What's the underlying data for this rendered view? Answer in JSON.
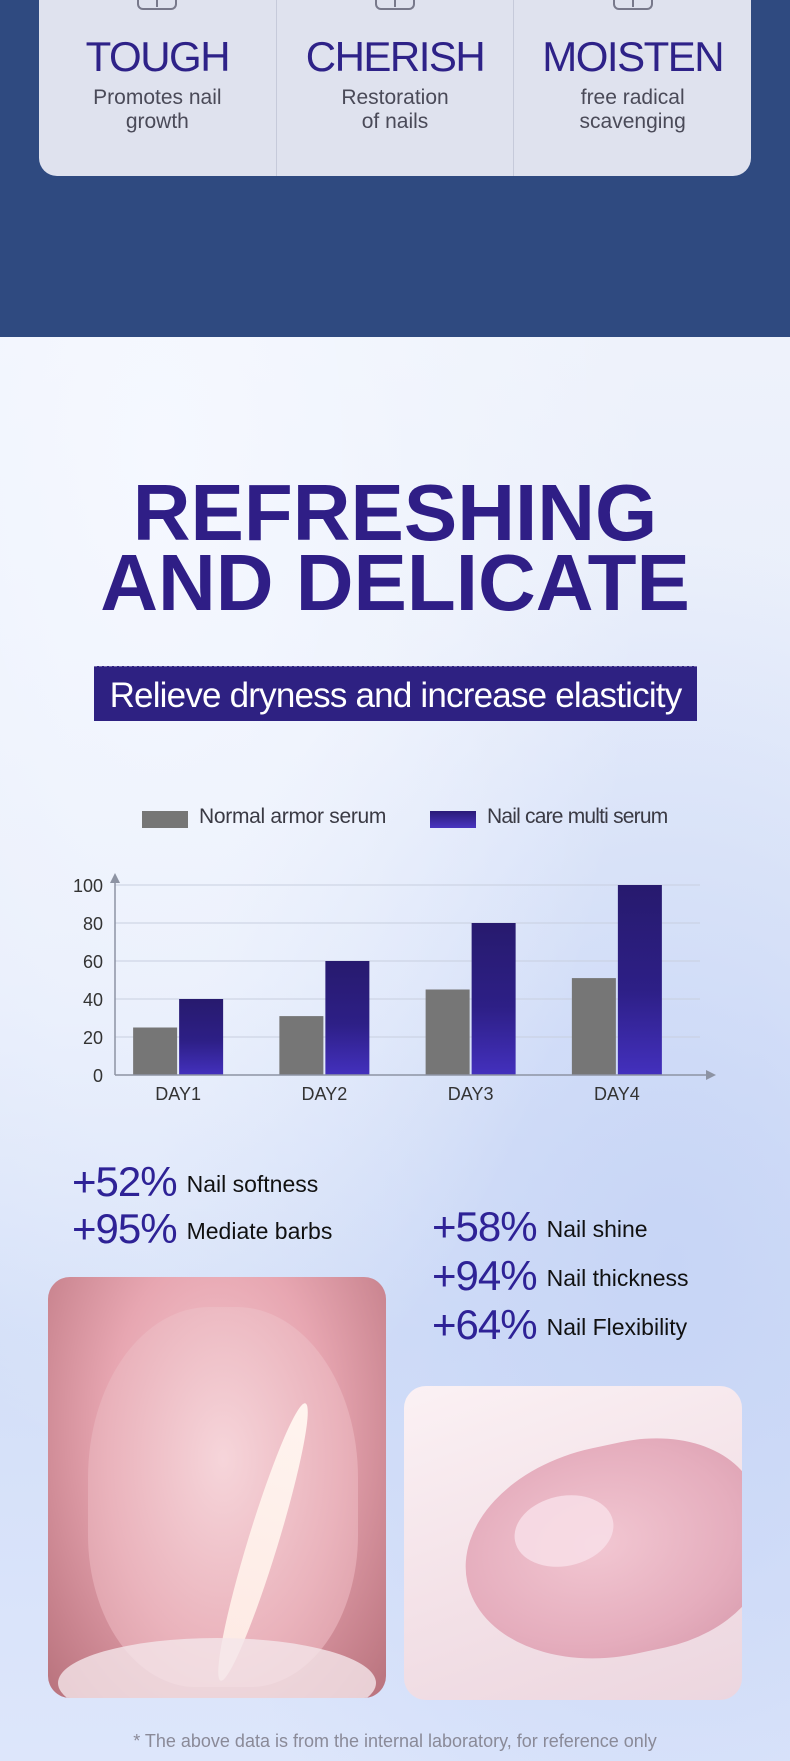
{
  "features": [
    {
      "title": "TOUGH",
      "line1": "Promotes nail",
      "line2": "growth"
    },
    {
      "title": "CHERISH",
      "line1": "Restoration",
      "line2": "of nails"
    },
    {
      "title": "MOISTEN",
      "line1": "free radical",
      "line2": "scavenging"
    }
  ],
  "headline": {
    "line1": "REFRESHING",
    "line2": "AND DELICATE"
  },
  "subtitle": "Relieve dryness and increase elasticity",
  "colors": {
    "brand": "#2e2182",
    "normal": "#767676",
    "accent": "#3b2aa6"
  },
  "chart_data": {
    "type": "bar",
    "categories": [
      "DAY1",
      "DAY2",
      "DAY3",
      "DAY4"
    ],
    "series": [
      {
        "name": "Normal armor serum",
        "values": [
          25,
          31,
          45,
          51
        ],
        "color": "#767676"
      },
      {
        "name": "Nail care multi serum",
        "values": [
          40,
          60,
          80,
          100
        ],
        "color": "#3b2aa6"
      }
    ],
    "yticks": [
      "0",
      "20",
      "40",
      "60",
      "80",
      "100"
    ],
    "ylim": [
      0,
      100
    ],
    "grid": true,
    "legend": "top"
  },
  "stats": [
    {
      "pct": "+52%",
      "label": "Nail softness"
    },
    {
      "pct": "+95%",
      "label": "Mediate barbs"
    },
    {
      "pct": "+58%",
      "label": "Nail shine"
    },
    {
      "pct": "+94%",
      "label": "Nail thickness"
    },
    {
      "pct": "+64%",
      "label": "Nail Flexibility"
    }
  ],
  "footnote": "* The above data is from the internal laboratory, for reference only"
}
